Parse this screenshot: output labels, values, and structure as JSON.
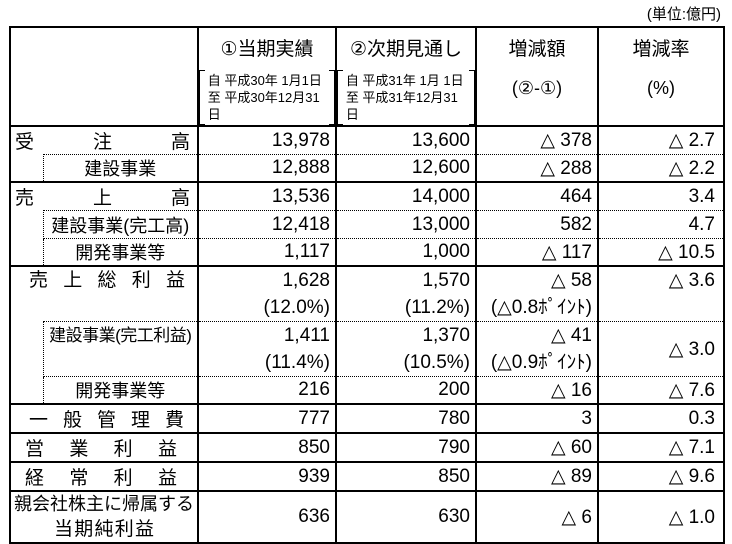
{
  "unit_note": "(単位:億円)",
  "table": {
    "header": {
      "col_current": {
        "title": "①当期実績",
        "date_from": "自 平成30年 1月1日",
        "date_to": "至 平成30年12月31日"
      },
      "col_forecast": {
        "title": "②次期見通し",
        "date_from": "自 平成31年 1月 1日",
        "date_to": "至 平成31年12月31日"
      },
      "col_change": {
        "title": "増減額",
        "sub": "(②-①)"
      },
      "col_rate": {
        "title": "増減率",
        "sub": "(%)"
      }
    },
    "rows": [
      {
        "label": "受注高",
        "current": "13,978",
        "forecast": "13,600",
        "change": "△ 378",
        "rate": "△ 2.7"
      },
      {
        "label": "建設事業",
        "current": "12,888",
        "forecast": "12,600",
        "change": "△ 288",
        "rate": "△ 2.2"
      },
      {
        "label": "売上高",
        "current": "13,536",
        "forecast": "14,000",
        "change": "464",
        "rate": "3.4"
      },
      {
        "label": "建設事業(完工高)",
        "current": "12,418",
        "forecast": "13,000",
        "change": "582",
        "rate": "4.7"
      },
      {
        "label": "開発事業等",
        "current": "1,117",
        "forecast": "1,000",
        "change": "△ 117",
        "rate": "△ 10.5"
      },
      {
        "label": "売上総利益",
        "current": "1,628",
        "current_pct": "(12.0%)",
        "forecast": "1,570",
        "forecast_pct": "(11.2%)",
        "change": "△ 58",
        "change_pct": "(△0.8ﾎﾟｲﾝﾄ)",
        "rate": "△ 3.6"
      },
      {
        "label": "建設事業(完工利益)",
        "current": "1,411",
        "current_pct": "(11.4%)",
        "forecast": "1,370",
        "forecast_pct": "(10.5%)",
        "change": "△ 41",
        "change_pct": "(△0.9ﾎﾟｲﾝﾄ)",
        "rate": "△ 3.0"
      },
      {
        "label": "開発事業等",
        "current": "216",
        "forecast": "200",
        "change": "△ 16",
        "rate": "△ 7.6"
      },
      {
        "label": "一般管理費",
        "current": "777",
        "forecast": "780",
        "change": "3",
        "rate": "0.3"
      },
      {
        "label": "営業利益",
        "current": "850",
        "forecast": "790",
        "change": "△ 60",
        "rate": "△ 7.1"
      },
      {
        "label": "経常利益",
        "current": "939",
        "forecast": "850",
        "change": "△ 89",
        "rate": "△ 9.6"
      },
      {
        "label_line1": "親会社株主に帰属する",
        "label_line2": "当期純利益",
        "current": "636",
        "forecast": "630",
        "change": "△ 6",
        "rate": "△ 1.0"
      }
    ]
  }
}
